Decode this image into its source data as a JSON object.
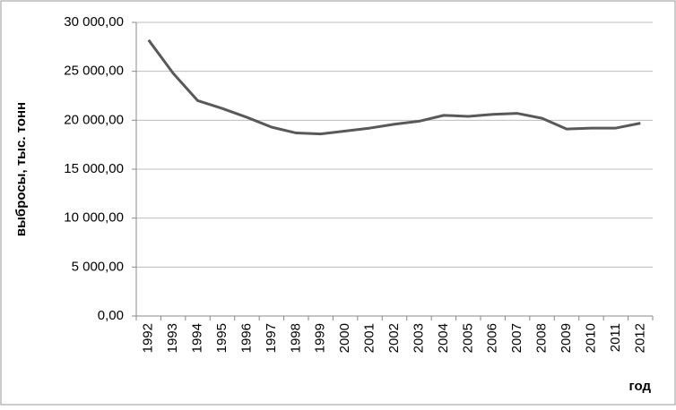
{
  "chart_data": {
    "type": "line",
    "y_label": "выбросы, тыс. тонн",
    "x_label": "год",
    "categories": [
      "1992",
      "1993",
      "1994",
      "1995",
      "1996",
      "1997",
      "1998",
      "1999",
      "2000",
      "2001",
      "2002",
      "2003",
      "2004",
      "2005",
      "2006",
      "2007",
      "2008",
      "2009",
      "2010",
      "2011",
      "2012"
    ],
    "series": [
      {
        "color": "#595959",
        "values": [
          28200,
          24800,
          22000,
          21200,
          20300,
          19300,
          18700,
          18600,
          18900,
          19200,
          19600,
          19900,
          20500,
          20400,
          20600,
          20700,
          20200,
          19100,
          19200,
          19200,
          19700
        ]
      }
    ],
    "ylim": [
      0,
      30000
    ],
    "yticks": [
      {
        "value": 0,
        "label": "0,00"
      },
      {
        "value": 5000,
        "label": "5 000,00"
      },
      {
        "value": 10000,
        "label": "10 000,00"
      },
      {
        "value": 15000,
        "label": "15 000,00"
      },
      {
        "value": 20000,
        "label": "20 000,00"
      },
      {
        "value": 25000,
        "label": "25 000,00"
      },
      {
        "value": 30000,
        "label": "30 000,00"
      }
    ],
    "grid": true
  }
}
